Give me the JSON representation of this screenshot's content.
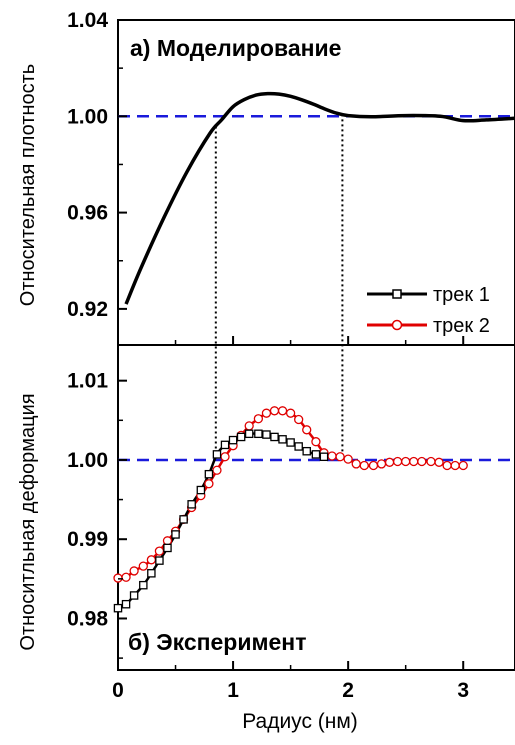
{
  "xlabel": "Радиус (нм)",
  "x_ticks": [
    "0",
    "1",
    "2",
    "3"
  ],
  "colors": {
    "ref": "#1a1adb",
    "series1": "#000000",
    "series2": "#e00000",
    "vline": "#000000"
  },
  "chart_data": [
    {
      "type": "line",
      "panel_label": "а) Моделирование",
      "ylabel": "Относительная плотность",
      "xlim": [
        0,
        3.45
      ],
      "ylim": [
        0.905,
        1.04
      ],
      "y_ticks": [
        "0.92",
        "0.96",
        "1.00",
        "1.04"
      ],
      "reference_line_y": 1.0,
      "vertical_markers_x": [
        0.85,
        1.95
      ],
      "grid": false,
      "series": [
        {
          "x": [
            0.07,
            0.2,
            0.4,
            0.6,
            0.8,
            0.9,
            1.0,
            1.1,
            1.2,
            1.3,
            1.4,
            1.5,
            1.6,
            1.7,
            1.8,
            1.9,
            2.0,
            2.2,
            2.5,
            2.8,
            3.0,
            3.2,
            3.45
          ],
          "y": [
            0.922,
            0.937,
            0.958,
            0.977,
            0.993,
            0.9985,
            1.004,
            1.007,
            1.0088,
            1.0094,
            1.0092,
            1.0083,
            1.0068,
            1.005,
            1.003,
            1.0013,
            1.0003,
            0.9998,
            1.0003,
            1.0,
            0.9982,
            0.9985,
            0.9992
          ]
        }
      ]
    },
    {
      "type": "line",
      "panel_label": "б) Эксперимент",
      "ylabel": "Относитльная деформация",
      "xlim": [
        0,
        3.45
      ],
      "ylim": [
        0.9735,
        1.0145
      ],
      "y_ticks": [
        "0.98",
        "0.99",
        "1.00",
        "1.01"
      ],
      "reference_line_y": 1.0,
      "legend": "top-right",
      "grid": false,
      "series": [
        {
          "name": "трек 1",
          "x": [
            0.0,
            0.07,
            0.14,
            0.22,
            0.29,
            0.36,
            0.43,
            0.5,
            0.57,
            0.64,
            0.72,
            0.79,
            0.86,
            0.93,
            1.0,
            1.07,
            1.14,
            1.22,
            1.29,
            1.36,
            1.43,
            1.5,
            1.57,
            1.64,
            1.72,
            1.79
          ],
          "y": [
            0.9813,
            0.9818,
            0.9829,
            0.9842,
            0.9857,
            0.9873,
            0.9889,
            0.9906,
            0.9925,
            0.9944,
            0.9962,
            0.9982,
            1.0007,
            1.0019,
            1.0025,
            1.0029,
            1.0033,
            1.0033,
            1.0032,
            1.0029,
            1.0026,
            1.0022,
            1.0017,
            1.0011,
            1.0007,
            1.0004
          ]
        },
        {
          "name": "трек 2",
          "x": [
            0.0,
            0.07,
            0.14,
            0.22,
            0.29,
            0.36,
            0.43,
            0.5,
            0.57,
            0.64,
            0.72,
            0.79,
            0.86,
            0.93,
            1.0,
            1.07,
            1.14,
            1.22,
            1.29,
            1.36,
            1.43,
            1.5,
            1.57,
            1.64,
            1.72,
            1.79,
            1.86,
            1.93,
            2.0,
            2.07,
            2.14,
            2.22,
            2.29,
            2.36,
            2.43,
            2.5,
            2.57,
            2.64,
            2.72,
            2.79,
            2.86,
            2.93,
            3.0
          ],
          "y": [
            0.9851,
            0.9852,
            0.986,
            0.9866,
            0.9874,
            0.9885,
            0.9898,
            0.991,
            0.9925,
            0.994,
            0.9955,
            0.997,
            0.9987,
            1.0004,
            1.0018,
            1.0031,
            1.0043,
            1.0052,
            1.0059,
            1.0062,
            1.0062,
            1.0059,
            1.0051,
            1.0038,
            1.0023,
            1.0009,
            1.0005,
            1.0004,
            1.0001,
            0.9995,
            0.9993,
            0.9993,
            0.9995,
            0.9997,
            0.9998,
            0.9998,
            0.9998,
            0.9998,
            0.9998,
            0.9997,
            0.9993,
            0.9993,
            0.9993
          ]
        }
      ]
    }
  ]
}
